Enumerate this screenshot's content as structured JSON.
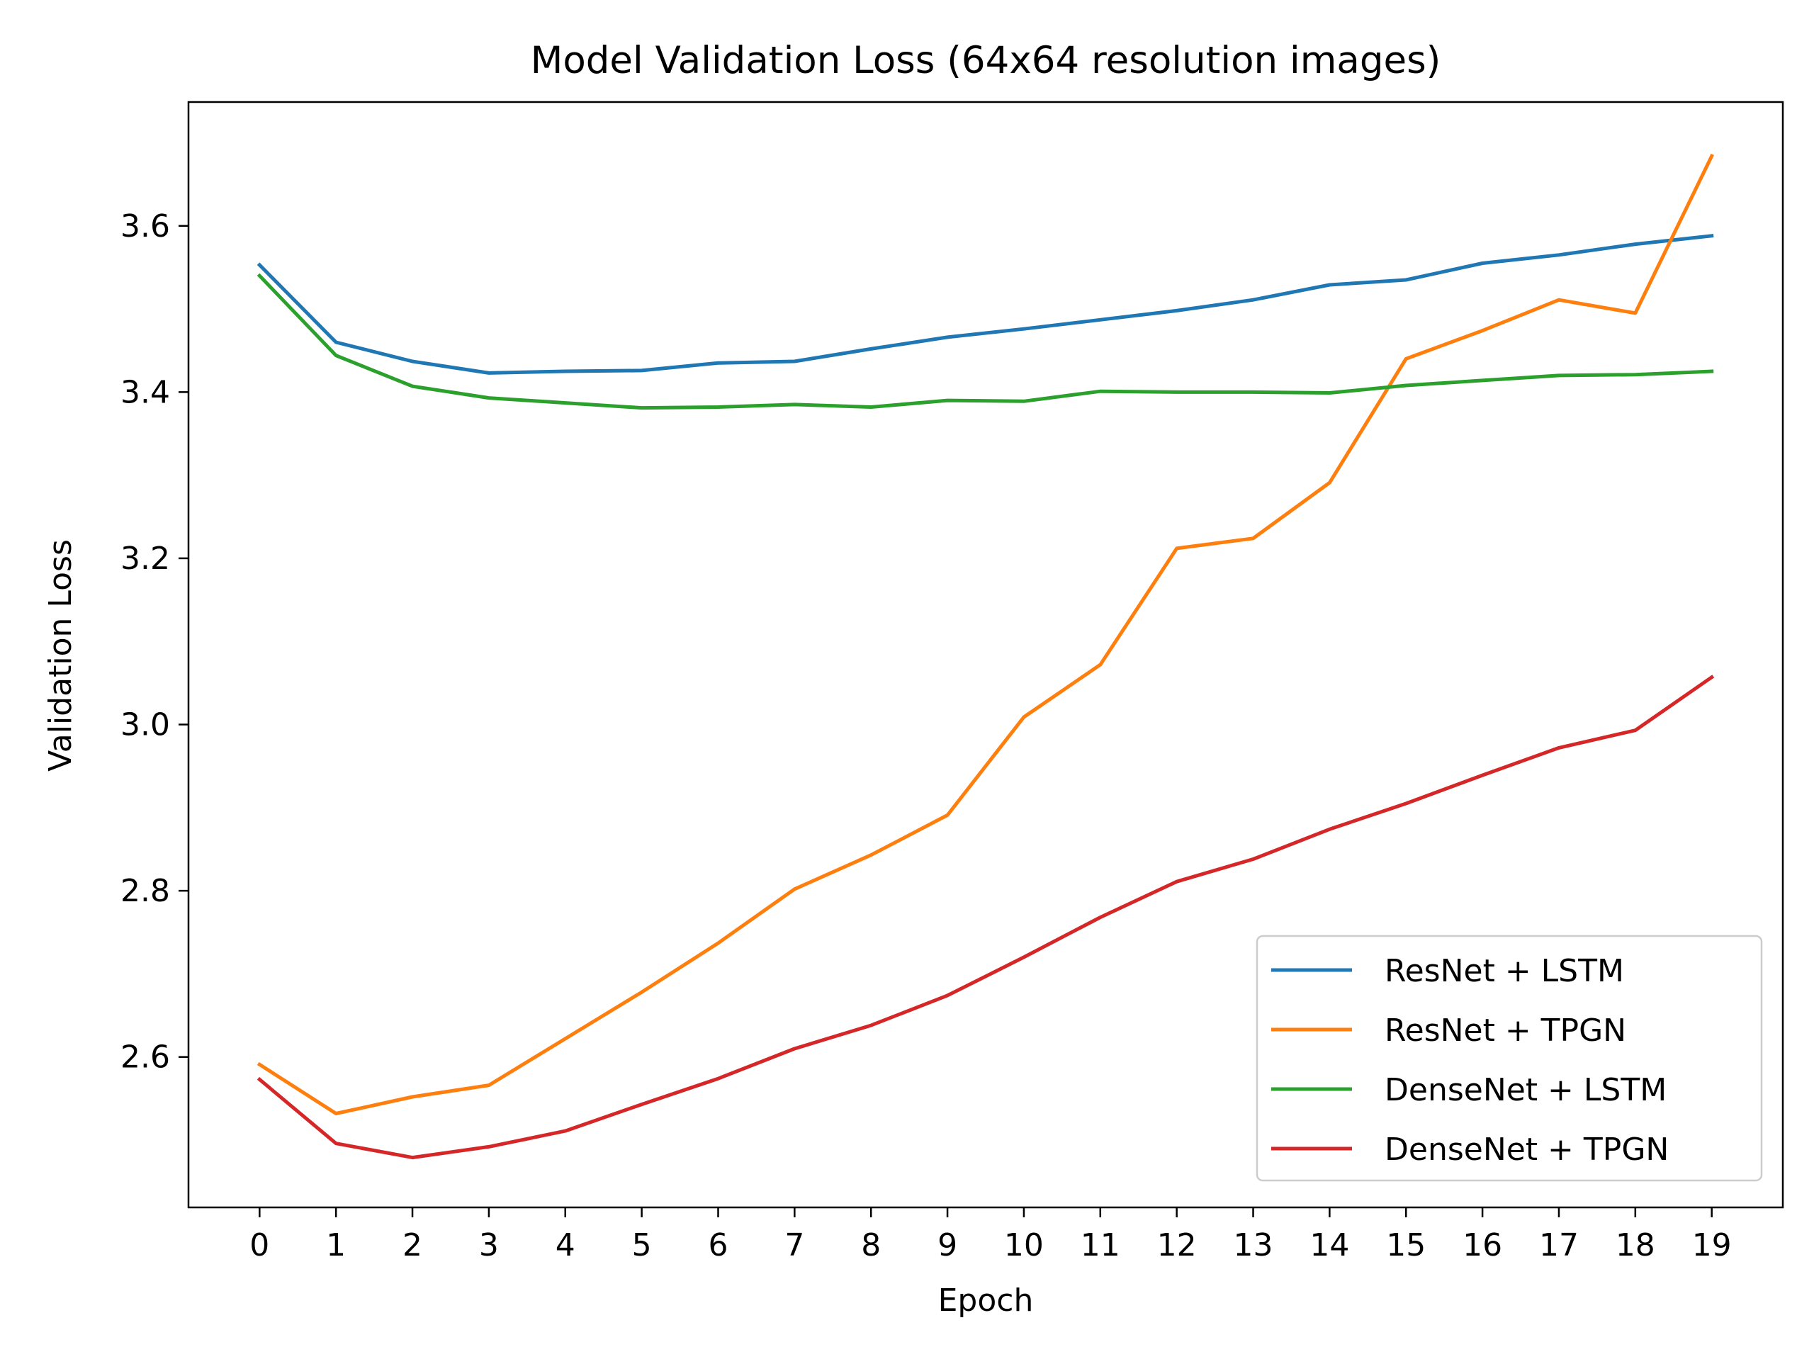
{
  "chart_data": {
    "type": "line",
    "title": "Model Validation Loss (64x64 resolution images)",
    "xlabel": "Epoch",
    "ylabel": "Validation Loss",
    "x": [
      0,
      1,
      2,
      3,
      4,
      5,
      6,
      7,
      8,
      9,
      10,
      11,
      12,
      13,
      14,
      15,
      16,
      17,
      18,
      19
    ],
    "x_ticks": [
      "0",
      "1",
      "2",
      "3",
      "4",
      "5",
      "6",
      "7",
      "8",
      "9",
      "10",
      "11",
      "12",
      "13",
      "14",
      "15",
      "16",
      "17",
      "18",
      "19"
    ],
    "xlim": [
      -0.93,
      19.93
    ],
    "ylim": [
      2.419,
      3.749
    ],
    "y_ticks": [
      {
        "value": 2.6,
        "label": "2.6"
      },
      {
        "value": 2.8,
        "label": "2.8"
      },
      {
        "value": 3.0,
        "label": "3.0"
      },
      {
        "value": 3.2,
        "label": "3.2"
      },
      {
        "value": 3.4,
        "label": "3.4"
      },
      {
        "value": 3.6,
        "label": "3.6"
      }
    ],
    "grid": false,
    "legend_position": "lower-right",
    "series": [
      {
        "name": "ResNet + LSTM",
        "color": "#1f77b4",
        "values": [
          3.553,
          3.46,
          3.437,
          3.423,
          3.425,
          3.426,
          3.435,
          3.437,
          3.452,
          3.466,
          3.476,
          3.487,
          3.498,
          3.511,
          3.529,
          3.535,
          3.555,
          3.565,
          3.578,
          3.588
        ]
      },
      {
        "name": "ResNet + TPGN",
        "color": "#ff7f0e",
        "values": [
          2.591,
          2.532,
          2.552,
          2.566,
          2.622,
          2.678,
          2.737,
          2.802,
          2.843,
          2.891,
          3.009,
          3.072,
          3.212,
          3.224,
          3.291,
          3.44,
          3.474,
          3.511,
          3.495,
          3.684
        ]
      },
      {
        "name": "DenseNet + LSTM",
        "color": "#2ca02c",
        "values": [
          3.54,
          3.444,
          3.407,
          3.393,
          3.387,
          3.381,
          3.382,
          3.385,
          3.382,
          3.39,
          3.389,
          3.401,
          3.4,
          3.4,
          3.399,
          3.408,
          3.414,
          3.42,
          3.421,
          3.425
        ]
      },
      {
        "name": "DenseNet + TPGN",
        "color": "#d62728",
        "values": [
          2.573,
          2.496,
          2.479,
          2.492,
          2.511,
          2.543,
          2.574,
          2.61,
          2.638,
          2.674,
          2.72,
          2.768,
          2.811,
          2.838,
          2.874,
          2.905,
          2.939,
          2.972,
          2.993,
          3.057
        ]
      }
    ]
  }
}
